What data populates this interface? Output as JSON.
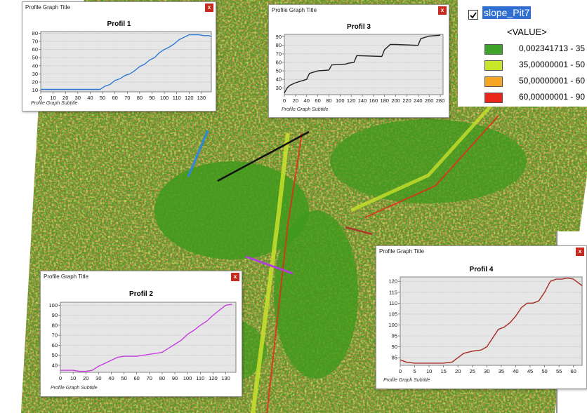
{
  "legend": {
    "checked": true,
    "layer_name": "slope_Pit7",
    "field": "<VALUE>",
    "classes": [
      {
        "label": "0,002341713 - 35",
        "color": "#3fa32a"
      },
      {
        "label": "35,00000001 - 50",
        "color": "#c6e62a"
      },
      {
        "label": "50,00000001 - 60",
        "color": "#f5a623"
      },
      {
        "label": "60,00000001 - 90",
        "color": "#e8261c"
      }
    ]
  },
  "profiles": [
    {
      "window_title": "Profile Graph Title",
      "title": "Profil 1",
      "subtitle": "Profile Graph Subtitle",
      "color": "#2e79d6",
      "x_ticks": [
        0,
        10,
        20,
        30,
        40,
        50,
        60,
        70,
        80,
        90,
        100,
        110,
        120,
        130
      ],
      "y_ticks": [
        10,
        20,
        30,
        40,
        50,
        60,
        70,
        80
      ],
      "xlim": [
        0,
        138
      ],
      "ylim": [
        8,
        82
      ],
      "x": [
        0,
        10,
        20,
        30,
        40,
        48,
        52,
        56,
        60,
        64,
        68,
        72,
        76,
        80,
        84,
        88,
        92,
        96,
        100,
        104,
        108,
        112,
        116,
        120,
        124,
        128,
        132,
        136,
        138
      ],
      "y": [
        11,
        11,
        11,
        11,
        11,
        11,
        15,
        17,
        22,
        24,
        28,
        30,
        34,
        39,
        42,
        47,
        50,
        56,
        60,
        63,
        67,
        72,
        75,
        78,
        78,
        78,
        77,
        77,
        76
      ]
    },
    {
      "window_title": "Profile Graph Title",
      "title": "Profil 2",
      "subtitle": "Profile Graph Subtitle",
      "color": "#c73fe0",
      "x_ticks": [
        0,
        10,
        20,
        30,
        40,
        50,
        60,
        70,
        80,
        90,
        100,
        110,
        120,
        130
      ],
      "y_ticks": [
        40,
        50,
        60,
        70,
        80,
        90,
        100
      ],
      "xlim": [
        0,
        138
      ],
      "ylim": [
        33,
        103
      ],
      "x": [
        0,
        5,
        10,
        15,
        20,
        25,
        30,
        35,
        40,
        45,
        50,
        55,
        60,
        65,
        70,
        75,
        80,
        85,
        90,
        95,
        100,
        105,
        110,
        115,
        120,
        125,
        130,
        135
      ],
      "y": [
        35,
        35,
        35,
        34,
        34,
        35,
        39,
        42,
        45,
        48,
        49,
        49,
        49,
        50,
        51,
        52,
        53,
        57,
        61,
        65,
        71,
        75,
        80,
        84,
        90,
        95,
        100,
        101
      ]
    },
    {
      "window_title": "Profile Graph Title",
      "title": "Profil 3",
      "subtitle": "Profile Graph Subtitle",
      "color": "#222222",
      "x_ticks": [
        0,
        20,
        40,
        60,
        80,
        100,
        120,
        140,
        160,
        180,
        200,
        220,
        240,
        260,
        280
      ],
      "y_ticks": [
        30,
        40,
        50,
        60,
        70,
        80,
        90
      ],
      "xlim": [
        0,
        285
      ],
      "ylim": [
        22,
        93
      ],
      "x": [
        0,
        5,
        10,
        20,
        30,
        40,
        45,
        55,
        60,
        80,
        85,
        110,
        115,
        125,
        130,
        175,
        180,
        190,
        200,
        240,
        245,
        260,
        280
      ],
      "y": [
        24,
        30,
        33,
        36,
        38,
        40,
        47,
        49,
        50,
        51,
        57,
        58,
        59,
        60,
        68,
        67,
        75,
        81,
        81,
        80,
        88,
        91,
        92
      ]
    },
    {
      "window_title": "Profile Graph Title",
      "title": "Profil 4",
      "subtitle": "Profile Graph Subtitle",
      "color": "#a52a22",
      "x_ticks": [
        0,
        5,
        10,
        15,
        20,
        25,
        30,
        35,
        40,
        45,
        50,
        55,
        60
      ],
      "y_ticks": [
        85,
        90,
        95,
        100,
        105,
        110,
        115,
        120
      ],
      "xlim": [
        0,
        63
      ],
      "ylim": [
        81.5,
        122
      ],
      "x": [
        0,
        2,
        5,
        10,
        15,
        18,
        20,
        22,
        25,
        28,
        30,
        32,
        34,
        36,
        38,
        40,
        42,
        44,
        46,
        48,
        50,
        52,
        54,
        56,
        58,
        60,
        62,
        63
      ],
      "y": [
        84,
        83,
        82.5,
        82.5,
        82.5,
        83,
        85,
        87,
        88,
        88.5,
        90,
        94,
        98,
        99,
        101,
        104,
        108,
        110,
        110,
        111,
        115,
        120,
        121,
        121,
        121.5,
        121,
        119,
        118
      ]
    }
  ]
}
